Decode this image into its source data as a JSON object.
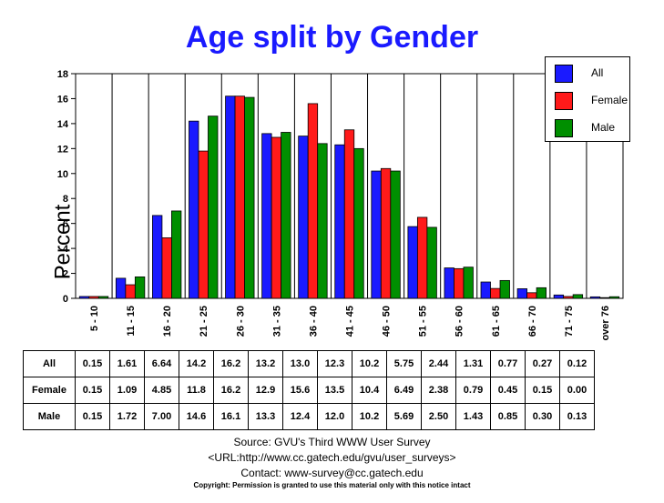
{
  "chart_data": {
    "type": "bar",
    "title": "Age split by Gender",
    "ylabel": "Percent",
    "xlabel": "",
    "ylim": [
      0,
      18
    ],
    "yticks": [
      0,
      2,
      4,
      6,
      8,
      10,
      12,
      14,
      16,
      18
    ],
    "grid": "vertical",
    "legend_position": "top-right",
    "categories": [
      "5 - 10",
      "11 - 15",
      "16 - 20",
      "21 - 25",
      "26 - 30",
      "31 - 35",
      "36 - 40",
      "41 - 45",
      "46 - 50",
      "51 - 55",
      "56 - 60",
      "61 - 65",
      "66 - 70",
      "71 - 75",
      "over 76"
    ],
    "series": [
      {
        "name": "All",
        "color": "#1a1aff",
        "values": [
          0.15,
          1.61,
          6.64,
          14.2,
          16.2,
          13.2,
          13.0,
          12.3,
          10.2,
          5.75,
          2.44,
          1.31,
          0.77,
          0.27,
          0.12
        ],
        "labels": [
          "0.15",
          "1.61",
          "6.64",
          "14.2",
          "16.2",
          "13.2",
          "13.0",
          "12.3",
          "10.2",
          "5.75",
          "2.44",
          "1.31",
          "0.77",
          "0.27",
          "0.12"
        ]
      },
      {
        "name": "Female",
        "color": "#ff1a1a",
        "values": [
          0.15,
          1.09,
          4.85,
          11.8,
          16.2,
          12.9,
          15.6,
          13.5,
          10.4,
          6.49,
          2.38,
          0.79,
          0.45,
          0.15,
          0.0
        ],
        "labels": [
          "0.15",
          "1.09",
          "4.85",
          "11.8",
          "16.2",
          "12.9",
          "15.6",
          "13.5",
          "10.4",
          "6.49",
          "2.38",
          "0.79",
          "0.45",
          "0.15",
          "0.00"
        ]
      },
      {
        "name": "Male",
        "color": "#008f00",
        "values": [
          0.15,
          1.72,
          7.0,
          14.6,
          16.1,
          13.3,
          12.4,
          12.0,
          10.2,
          5.69,
          2.5,
          1.43,
          0.85,
          0.3,
          0.13
        ],
        "labels": [
          "0.15",
          "1.72",
          "7.00",
          "14.6",
          "16.1",
          "13.3",
          "12.4",
          "12.0",
          "10.2",
          "5.69",
          "2.50",
          "1.43",
          "0.85",
          "0.30",
          "0.13"
        ]
      }
    ]
  },
  "footer": {
    "source": "Source: GVU's Third WWW User Survey",
    "url": "<URL:http://www.cc.gatech.edu/gvu/user_surveys>",
    "contact": "Contact: www-survey@cc.gatech.edu",
    "copyright": "Copyright: Permission is granted to use this material only with this notice intact"
  }
}
